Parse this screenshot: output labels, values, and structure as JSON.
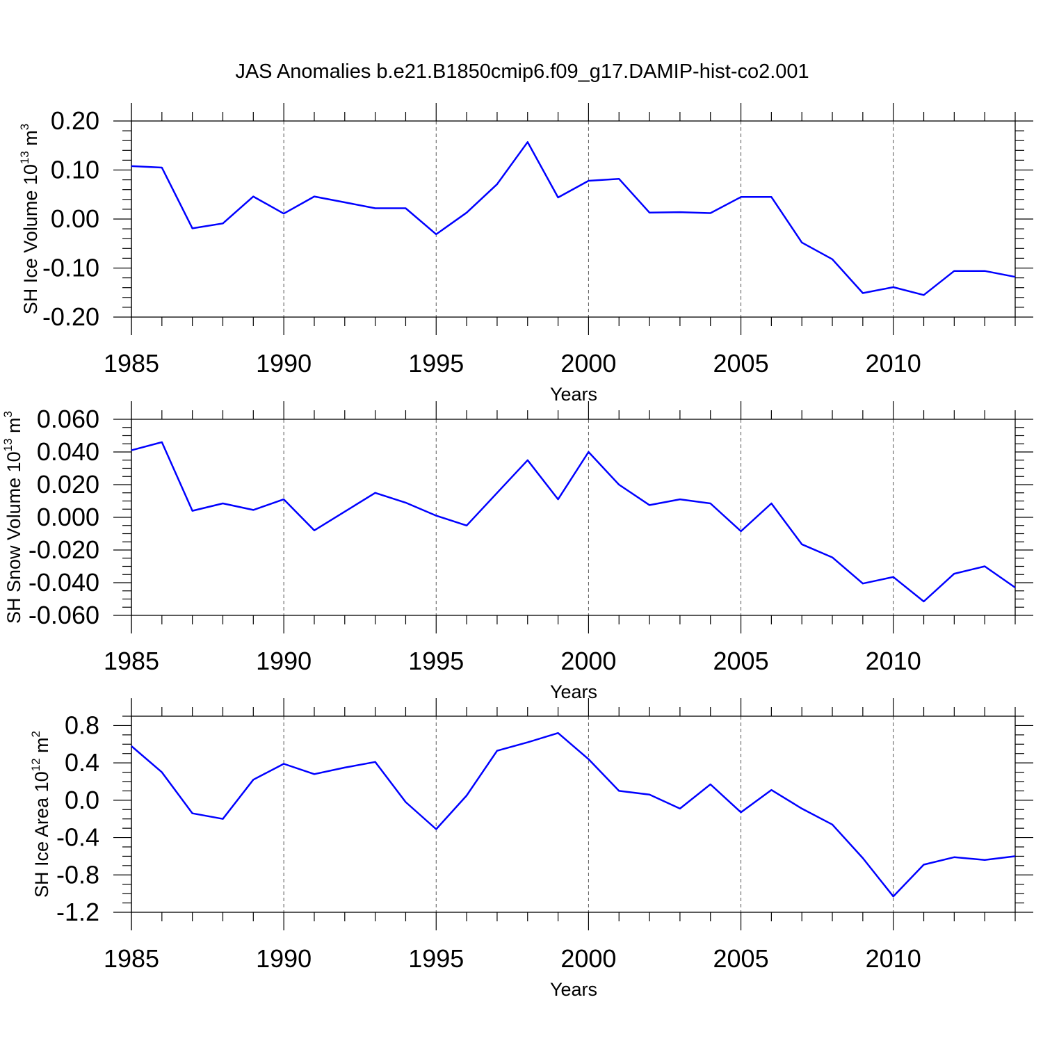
{
  "title": "JAS Anomalies b.e21.B1850cmip6.f09_g17.DAMIP-hist-co2.001",
  "line_color": "#0000ff",
  "chart_data": [
    {
      "type": "line",
      "ylabel": {
        "main": "SH Ice Volume 10",
        "sup": "13",
        "unit": " m",
        "unit_sup": "3"
      },
      "xlabel": "Years",
      "xlim": [
        1985,
        2014
      ],
      "ylim": [
        -0.2,
        0.2
      ],
      "major_ticks": [
        -0.2,
        -0.1,
        0.0,
        0.1,
        0.2
      ],
      "tick_labels": [
        "-0.20",
        "-0.10",
        "0.00",
        "0.10",
        "0.20"
      ],
      "x_ticks": [
        1985,
        1990,
        1995,
        2000,
        2005,
        2010
      ],
      "x_tick_labels": [
        "1985",
        "1990",
        "1995",
        "2000",
        "2005",
        "2010"
      ],
      "x": [
        1985,
        1986,
        1987,
        1988,
        1989,
        1990,
        1991,
        1992,
        1993,
        1994,
        1995,
        1996,
        1997,
        1998,
        1999,
        2000,
        2001,
        2002,
        2003,
        2004,
        2005,
        2006,
        2007,
        2008,
        2009,
        2010,
        2011,
        2012,
        2013,
        2014
      ],
      "y": [
        0.108,
        0.105,
        -0.019,
        -0.009,
        0.046,
        0.011,
        0.046,
        0.034,
        0.022,
        0.022,
        -0.031,
        0.013,
        0.071,
        0.157,
        0.044,
        0.078,
        0.082,
        0.013,
        0.014,
        0.012,
        0.045,
        0.045,
        -0.048,
        -0.082,
        -0.151,
        -0.139,
        -0.155,
        -0.106,
        -0.106,
        -0.118
      ],
      "grid": "vertical dashed at x ticks"
    },
    {
      "type": "line",
      "ylabel": {
        "main": "SH Snow Volume 10",
        "sup": "13",
        "unit": " m",
        "unit_sup": "3"
      },
      "xlabel": "Years",
      "xlim": [
        1985,
        2014
      ],
      "ylim": [
        -0.06,
        0.06
      ],
      "major_ticks": [
        -0.06,
        -0.04,
        -0.02,
        0.0,
        0.02,
        0.04,
        0.06
      ],
      "tick_labels": [
        "-0.060",
        "-0.040",
        "-0.020",
        "0.000",
        "0.020",
        "0.040",
        "0.060"
      ],
      "x_ticks": [
        1985,
        1990,
        1995,
        2000,
        2005,
        2010
      ],
      "x_tick_labels": [
        "1985",
        "1990",
        "1995",
        "2000",
        "2005",
        "2010"
      ],
      "x": [
        1985,
        1986,
        1987,
        1988,
        1989,
        1990,
        1991,
        1992,
        1993,
        1994,
        1995,
        1996,
        1997,
        1998,
        1999,
        2000,
        2001,
        2002,
        2003,
        2004,
        2005,
        2006,
        2007,
        2008,
        2009,
        2010,
        2011,
        2012,
        2013,
        2014
      ],
      "y": [
        0.041,
        0.046,
        0.004,
        0.0085,
        0.0045,
        0.011,
        -0.008,
        0.0035,
        0.015,
        0.009,
        0.001,
        -0.005,
        0.015,
        0.035,
        0.011,
        0.04,
        0.02,
        0.0075,
        0.011,
        0.0085,
        -0.0085,
        0.0085,
        -0.0165,
        -0.0245,
        -0.0405,
        -0.0365,
        -0.0515,
        -0.0345,
        -0.03,
        -0.043
      ],
      "grid": "vertical dashed at x ticks"
    },
    {
      "type": "line",
      "ylabel": {
        "main": "SH Ice Area 10",
        "sup": "12",
        "unit": " m",
        "unit_sup": "2"
      },
      "xlabel": "Years",
      "xlim": [
        1985,
        2014
      ],
      "ylim": [
        -1.2,
        0.9
      ],
      "major_ticks": [
        -1.2,
        -0.8,
        -0.4,
        0.0,
        0.4,
        0.8
      ],
      "tick_labels": [
        "-1.2",
        "-0.8",
        "-0.4",
        "0.0",
        "0.4",
        "0.8"
      ],
      "x_ticks": [
        1985,
        1990,
        1995,
        2000,
        2005,
        2010
      ],
      "x_tick_labels": [
        "1985",
        "1990",
        "1995",
        "2000",
        "2005",
        "2010"
      ],
      "x": [
        1985,
        1986,
        1987,
        1988,
        1989,
        1990,
        1991,
        1992,
        1993,
        1994,
        1995,
        1996,
        1997,
        1998,
        1999,
        2000,
        2001,
        2002,
        2003,
        2004,
        2005,
        2006,
        2007,
        2008,
        2009,
        2010,
        2011,
        2012,
        2013,
        2014
      ],
      "y": [
        0.58,
        0.3,
        -0.14,
        -0.2,
        0.22,
        0.39,
        0.28,
        0.35,
        0.41,
        -0.02,
        -0.31,
        0.05,
        0.53,
        0.62,
        0.72,
        0.44,
        0.1,
        0.06,
        -0.09,
        0.17,
        -0.13,
        0.11,
        -0.09,
        -0.26,
        -0.62,
        -1.03,
        -0.69,
        -0.61,
        -0.64,
        -0.6
      ],
      "grid": "vertical dashed at x ticks"
    }
  ]
}
